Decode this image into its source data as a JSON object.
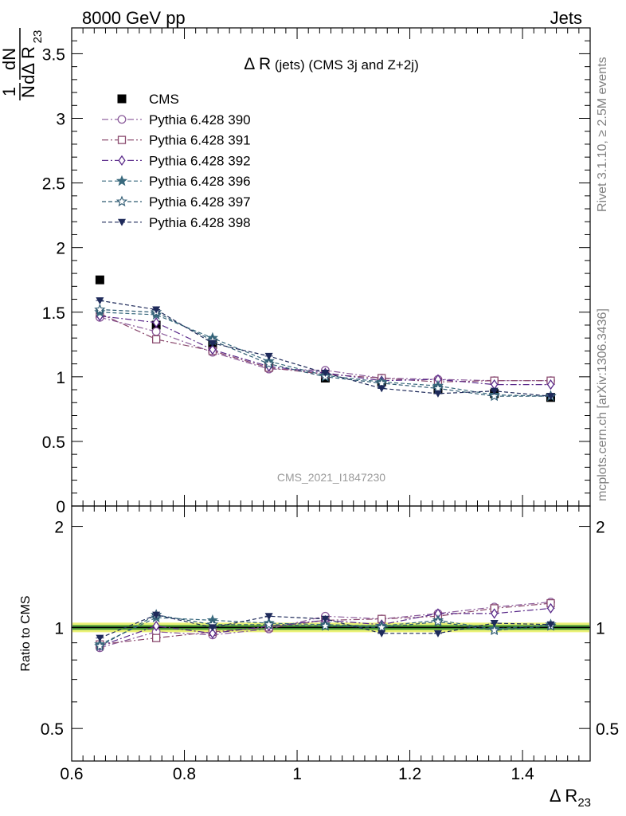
{
  "header": {
    "left": "8000 GeV pp",
    "right": "Jets"
  },
  "side_labels": {
    "rivet": "Rivet 3.1.10, ≥ 2.5M events",
    "mcplots": "mcplots.cern.ch [arXiv:1306.3436]"
  },
  "watermark": "CMS_2021_I1847230",
  "chart_data": [
    {
      "type": "scatter",
      "title": "Δ R (jets) (CMS 3j and Z+2j)",
      "title_main": "Δ R",
      "title_rest": " (jets) (CMS 3j and Z+2j)",
      "ylabel": "1/N dN/dΔ R23",
      "ylabel_parts": {
        "one": "1",
        "N": "N",
        "dN": "dN",
        "dR": "dΔ R",
        "sub": "23"
      },
      "xlim": [
        0.6,
        1.52
      ],
      "ylim": [
        0,
        3.7
      ],
      "x_ticks": [
        0.6,
        0.8,
        1.0,
        1.2,
        1.4
      ],
      "y_ticks": [
        0,
        0.5,
        1,
        1.5,
        2,
        2.5,
        3,
        3.5
      ],
      "y_tick_labels": [
        "0",
        "0.5",
        "1",
        "1.5",
        "2",
        "2.5",
        "3",
        "3.5"
      ],
      "legend_placement": "upper-left",
      "x": [
        0.65,
        0.75,
        0.85,
        0.95,
        1.05,
        1.15,
        1.25,
        1.35,
        1.45
      ],
      "series": [
        {
          "name": "CMS",
          "marker": "square-filled",
          "color": "#000000",
          "dash": "none",
          "values": [
            1.75,
            1.4,
            1.25,
            1.08,
            0.99,
            0.96,
            0.9,
            0.87,
            0.84
          ]
        },
        {
          "name": "Pythia 6.428 390",
          "marker": "circle-open",
          "color": "#8a5a9a",
          "dash": "8,3,2,3",
          "values": [
            1.46,
            1.35,
            1.19,
            1.06,
            1.05,
            0.99,
            0.98,
            0.97,
            0.97
          ]
        },
        {
          "name": "Pythia 6.428 391",
          "marker": "square-open",
          "color": "#8a4a6e",
          "dash": "8,3,2,3",
          "values": [
            1.49,
            1.29,
            1.2,
            1.07,
            1.02,
            0.99,
            0.96,
            0.97,
            0.97
          ]
        },
        {
          "name": "Pythia 6.428 392",
          "marker": "diamond-open",
          "color": "#5a2a8a",
          "dash": "8,3,2,3",
          "values": [
            1.47,
            1.42,
            1.21,
            1.08,
            1.03,
            0.97,
            0.98,
            0.94,
            0.94
          ]
        },
        {
          "name": "Pythia 6.428 396",
          "marker": "star-filled",
          "color": "#3a6a7e",
          "dash": "5,3",
          "values": [
            1.5,
            1.48,
            1.3,
            1.12,
            1.01,
            0.96,
            0.93,
            0.86,
            0.85
          ]
        },
        {
          "name": "Pythia 6.428 397",
          "marker": "star-open",
          "color": "#2e5a72",
          "dash": "5,3",
          "values": [
            1.52,
            1.5,
            1.28,
            1.1,
            1.0,
            0.95,
            0.91,
            0.85,
            0.85
          ]
        },
        {
          "name": "Pythia 6.428 398",
          "marker": "triangle-down-filled",
          "color": "#1e2a5a",
          "dash": "5,3",
          "values": [
            1.59,
            1.52,
            1.26,
            1.16,
            1.03,
            0.91,
            0.87,
            0.89,
            0.85
          ]
        }
      ]
    },
    {
      "type": "scatter",
      "ylabel": "Ratio to CMS",
      "xlabel": "Δ R23",
      "xlabel_main": "Δ R",
      "xlabel_sub": "23",
      "xlim": [
        0.6,
        1.52
      ],
      "ylim": [
        0.4,
        2.3
      ],
      "y_scale": "log",
      "x_ticks": [
        0.6,
        0.8,
        1.0,
        1.2,
        1.4
      ],
      "x_tick_labels": [
        "0.6",
        "0.8",
        "1",
        "1.2",
        "1.4"
      ],
      "y_ticks": [
        0.5,
        1,
        2
      ],
      "y_tick_labels": [
        "0.5",
        "1",
        "2"
      ],
      "band": {
        "inner_color": "#2e8b2e",
        "outer_color": "#e8f060"
      },
      "x": [
        0.65,
        0.75,
        0.85,
        0.95,
        1.05,
        1.15,
        1.25,
        1.35,
        1.45
      ],
      "series": [
        {
          "name": "Pythia 6.428 390",
          "marker": "circle-open",
          "color": "#8a5a9a",
          "dash": "8,3,2,3",
          "values": [
            0.87,
            0.97,
            0.95,
            0.99,
            1.08,
            1.06,
            1.1,
            1.15,
            1.19
          ]
        },
        {
          "name": "Pythia 6.428 391",
          "marker": "square-open",
          "color": "#8a4a6e",
          "dash": "8,3,2,3",
          "values": [
            0.89,
            0.93,
            0.97,
            1.0,
            1.05,
            1.06,
            1.08,
            1.14,
            1.18
          ]
        },
        {
          "name": "Pythia 6.428 392",
          "marker": "diamond-open",
          "color": "#5a2a8a",
          "dash": "8,3,2,3",
          "values": [
            0.88,
            1.01,
            0.96,
            1.01,
            1.05,
            1.02,
            1.1,
            1.1,
            1.14
          ]
        },
        {
          "name": "Pythia 6.428 396",
          "marker": "star-filled",
          "color": "#3a6a7e",
          "dash": "5,3",
          "values": [
            0.89,
            1.07,
            1.05,
            1.03,
            1.02,
            1.01,
            1.05,
            0.99,
            1.02
          ]
        },
        {
          "name": "Pythia 6.428 397",
          "marker": "star-open",
          "color": "#2e5a72",
          "dash": "5,3",
          "values": [
            0.88,
            1.09,
            1.02,
            1.02,
            1.01,
            1.0,
            1.04,
            0.98,
            1.01
          ]
        },
        {
          "name": "Pythia 6.428 398",
          "marker": "triangle-down-filled",
          "color": "#1e2a5a",
          "dash": "5,3",
          "values": [
            0.93,
            1.09,
            1.0,
            1.08,
            1.06,
            0.96,
            0.96,
            1.03,
            1.02
          ]
        }
      ]
    }
  ]
}
